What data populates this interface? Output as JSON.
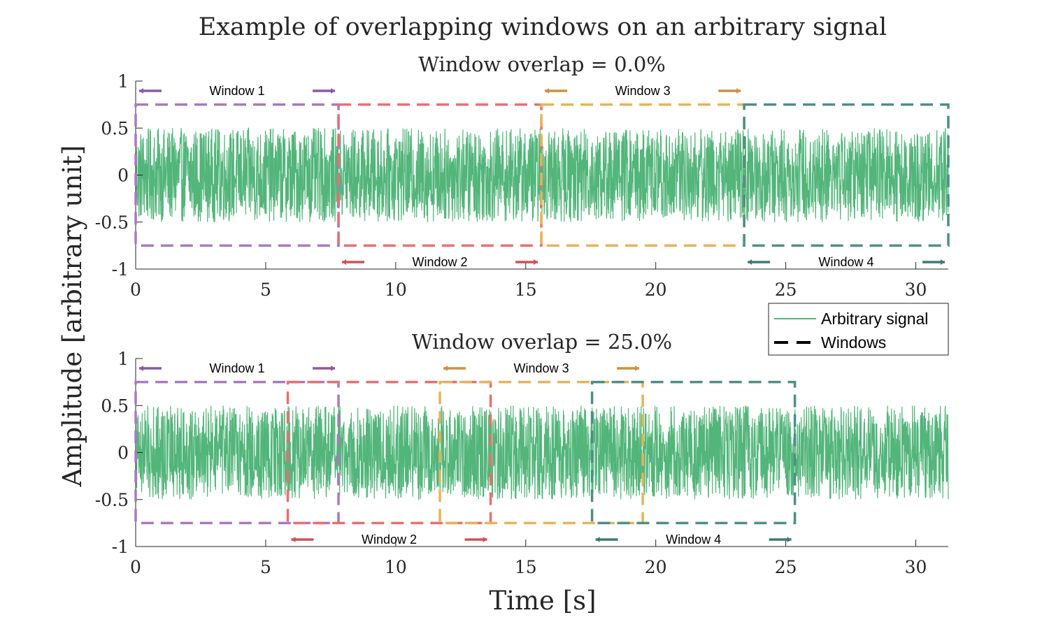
{
  "figure": {
    "title": "Example of overlapping windows on an arbitrary signal",
    "xlabel": "Time [s]",
    "ylabel": "Amplitude [arbitrary unit]"
  },
  "legend": {
    "placement": "between-panels-right",
    "items": [
      {
        "label": "Arbitrary signal",
        "style": "line",
        "color": "#52b57a"
      },
      {
        "label": "Windows",
        "style": "dashed",
        "color": "#000000"
      }
    ]
  },
  "colors": {
    "signal": "#52b57a",
    "window_1": "#a77ac0",
    "window_2": "#e86f72",
    "window_3": "#e5b45a",
    "window_4": "#4e8e87",
    "arrow_1": "#8b5aa3",
    "arrow_2": "#cf5258",
    "arrow_3": "#c99340",
    "arrow_4": "#3f7a74"
  },
  "chart_data": [
    {
      "type": "line",
      "title": "Window overlap = 0.0%",
      "xlim": [
        0,
        31.25
      ],
      "ylim": [
        -1,
        1
      ],
      "xticks": [
        "0",
        "5",
        "10",
        "15",
        "20",
        "25",
        "30"
      ],
      "yticks": [
        "1",
        "0.5",
        "0",
        "-0.5",
        "-1"
      ],
      "signal": {
        "name": "Arbitrary signal",
        "x_range": [
          0,
          31.25
        ],
        "amplitude_range": [
          -0.5,
          0.5
        ]
      },
      "windows": [
        {
          "label": "Window 1",
          "x": [
            0.0,
            7.8
          ],
          "y": [
            -0.75,
            0.75
          ],
          "label_position": "top"
        },
        {
          "label": "Window 2",
          "x": [
            7.8,
            15.6
          ],
          "y": [
            -0.75,
            0.75
          ],
          "label_position": "bottom"
        },
        {
          "label": "Window 3",
          "x": [
            15.6,
            23.4
          ],
          "y": [
            -0.75,
            0.75
          ],
          "label_position": "top"
        },
        {
          "label": "Window 4",
          "x": [
            23.4,
            31.25
          ],
          "y": [
            -0.75,
            0.75
          ],
          "label_position": "bottom"
        }
      ]
    },
    {
      "type": "line",
      "title": "Window overlap = 25.0%",
      "xlim": [
        0,
        31.25
      ],
      "ylim": [
        -1,
        1
      ],
      "xticks": [
        "0",
        "5",
        "10",
        "15",
        "20",
        "25",
        "30"
      ],
      "yticks": [
        "1",
        "0.5",
        "0",
        "-0.5",
        "-1"
      ],
      "signal": {
        "name": "Arbitrary signal",
        "x_range": [
          0,
          31.25
        ],
        "amplitude_range": [
          -0.5,
          0.5
        ]
      },
      "windows": [
        {
          "label": "Window 1",
          "x": [
            0.0,
            7.8
          ],
          "y": [
            -0.75,
            0.75
          ],
          "label_position": "top"
        },
        {
          "label": "Window 2",
          "x": [
            5.85,
            13.65
          ],
          "y": [
            -0.75,
            0.75
          ],
          "label_position": "bottom"
        },
        {
          "label": "Window 3",
          "x": [
            11.7,
            19.5
          ],
          "y": [
            -0.75,
            0.75
          ],
          "label_position": "top"
        },
        {
          "label": "Window 4",
          "x": [
            17.55,
            25.35
          ],
          "y": [
            -0.75,
            0.75
          ],
          "label_position": "bottom"
        }
      ]
    }
  ]
}
